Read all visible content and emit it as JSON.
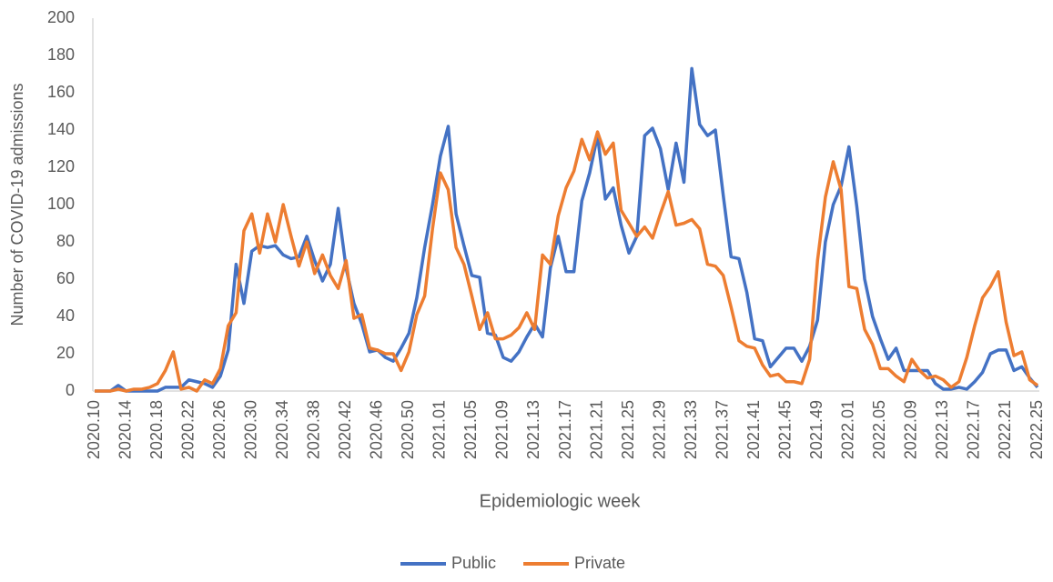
{
  "chart_data": {
    "type": "line",
    "y_label": "Number of COVID-19 admissions",
    "x_label": "Epidemiologic week",
    "categories": [
      "2020.10",
      null,
      null,
      null,
      "2020.14",
      null,
      null,
      null,
      "2020.18",
      null,
      null,
      null,
      "2020.22",
      null,
      null,
      null,
      "2020.26",
      null,
      null,
      null,
      "2020.30",
      null,
      null,
      null,
      "2020.34",
      null,
      null,
      null,
      "2020.38",
      null,
      null,
      null,
      "2020.42",
      null,
      null,
      null,
      "2020.46",
      null,
      null,
      null,
      "2020.50",
      null,
      null,
      null,
      "2021.01",
      null,
      null,
      null,
      "2021.05",
      null,
      null,
      null,
      "2021.09",
      null,
      null,
      null,
      "2021.13",
      null,
      null,
      null,
      "2021.17",
      null,
      null,
      null,
      "2021.21",
      null,
      null,
      null,
      "2021.25",
      null,
      null,
      null,
      "2021.29",
      null,
      null,
      null,
      "2021.33",
      null,
      null,
      null,
      "2021.37",
      null,
      null,
      null,
      "2021.41",
      null,
      null,
      null,
      "2021.45",
      null,
      null,
      null,
      "2021.49",
      null,
      null,
      null,
      "2022.01",
      null,
      null,
      null,
      "2022.05",
      null,
      null,
      null,
      "2022.09",
      null,
      null,
      null,
      "2022.13",
      null,
      null,
      null,
      "2022.17",
      null,
      null,
      null,
      "2022.21",
      null,
      null,
      null,
      "2022.25"
    ],
    "series": [
      {
        "name": "Public",
        "color": "#4472c4",
        "values": [
          0,
          0,
          0,
          3,
          0,
          0,
          0,
          0,
          0,
          2,
          2,
          2,
          6,
          5,
          4,
          2,
          8,
          22,
          68,
          47,
          75,
          78,
          77,
          78,
          73,
          71,
          72,
          83,
          70,
          59,
          68,
          98,
          66,
          47,
          36,
          21,
          22,
          18,
          16,
          23,
          31,
          50,
          77,
          100,
          126,
          142,
          95,
          78,
          62,
          61,
          31,
          30,
          18,
          16,
          21,
          29,
          36,
          29,
          66,
          83,
          64,
          64,
          102,
          117,
          137,
          103,
          109,
          89,
          74,
          83,
          137,
          141,
          130,
          108,
          133,
          112,
          173,
          143,
          137,
          140,
          105,
          72,
          71,
          53,
          28,
          27,
          13,
          18,
          23,
          23,
          16,
          24,
          38,
          80,
          100,
          110,
          131,
          99,
          60,
          40,
          28,
          17,
          23,
          11,
          11,
          11,
          11,
          4,
          1,
          1,
          2,
          1,
          5,
          10,
          20,
          22,
          22,
          11,
          13,
          7,
          2
        ]
      },
      {
        "name": "Private",
        "color": "#ed7d31",
        "values": [
          0,
          0,
          0,
          1,
          0,
          1,
          1,
          2,
          4,
          11,
          21,
          1,
          2,
          0,
          6,
          4,
          12,
          35,
          42,
          86,
          95,
          74,
          95,
          80,
          100,
          83,
          67,
          80,
          63,
          73,
          62,
          55,
          70,
          39,
          41,
          23,
          22,
          20,
          20,
          11,
          21,
          41,
          51,
          87,
          117,
          108,
          77,
          68,
          51,
          33,
          42,
          28,
          28,
          30,
          34,
          42,
          33,
          73,
          68,
          94,
          109,
          118,
          135,
          124,
          139,
          127,
          133,
          97,
          90,
          83,
          88,
          82,
          95,
          107,
          89,
          90,
          92,
          87,
          68,
          67,
          62,
          45,
          27,
          24,
          23,
          14,
          8,
          9,
          5,
          5,
          4,
          17,
          70,
          104,
          123,
          108,
          56,
          55,
          33,
          25,
          12,
          12,
          8,
          5,
          17,
          11,
          7,
          8,
          6,
          2,
          5,
          18,
          35,
          50,
          56,
          64,
          37,
          19,
          21,
          6,
          3
        ]
      }
    ],
    "ylim": [
      0,
      200
    ],
    "yticks": [
      0,
      20,
      40,
      60,
      80,
      100,
      120,
      140,
      160,
      180,
      200
    ],
    "grid": false
  }
}
